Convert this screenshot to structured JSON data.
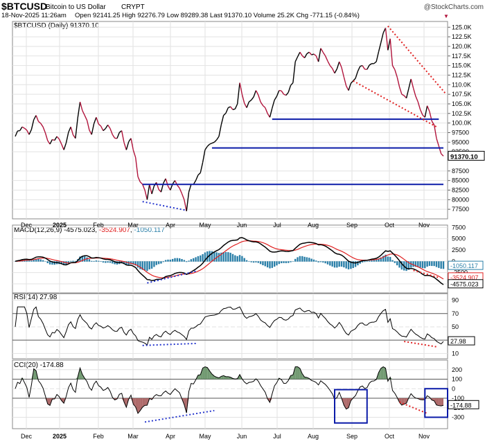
{
  "header": {
    "symbol": "$BTCUSD",
    "name": "Bitcoin to US Dollar",
    "exchange": "CRYPT",
    "copyright": "@StockCharts.com",
    "datetime": "18-Nov-2025 11:26am",
    "ohlc_text": "Open 92141.25  High 92276.79  Low 89289.38  Last 91370.10  Volume 25.2K  Chg -771.15 (-0.84%)",
    "change_arrow": "▼"
  },
  "chart_data": [
    {
      "type": "line",
      "panel": "price",
      "title": "$BTCUSD (Daily) 91370.10",
      "months": [
        "Dec",
        "2025",
        "Feb",
        "Mar",
        "Apr",
        "May",
        "Jun",
        "Jul",
        "Aug",
        "Sep",
        "Oct",
        "Nov"
      ],
      "y_ticks": [
        125000,
        122500,
        120000,
        117500,
        115000,
        112500,
        110000,
        107500,
        105000,
        102500,
        100000,
        97500,
        95000,
        92500,
        87500,
        85000,
        82500,
        80000,
        77500
      ],
      "y_tick_labels": [
        "125.0K",
        "122.5K",
        "120.0K",
        "117.5K",
        "115.0K",
        "112.5K",
        "110.0K",
        "107.5K",
        "105.0K",
        "102.5K",
        "100.0K",
        "97500",
        "95000",
        "92500",
        "87500",
        "85000",
        "82500",
        "80000",
        "77500"
      ],
      "ylim": [
        75000,
        126500
      ],
      "last_label": "91370.10",
      "series": [
        {
          "color_up": "#000000",
          "color_down": "#b0123a",
          "points": [
            [
              0,
              96500
            ],
            [
              3,
              99000
            ],
            [
              6,
              97000
            ],
            [
              9,
              102000
            ],
            [
              12,
              99000
            ],
            [
              15,
              94500
            ],
            [
              18,
              96500
            ],
            [
              21,
              93000
            ],
            [
              24,
              99000
            ],
            [
              26,
              96000
            ],
            [
              28,
              105500
            ],
            [
              30,
              102000
            ],
            [
              33,
              97000
            ],
            [
              35,
              101500
            ],
            [
              38,
              98000
            ],
            [
              40,
              99500
            ],
            [
              42,
              97000
            ],
            [
              44,
              96000
            ],
            [
              46,
              98000
            ],
            [
              48,
              93000
            ],
            [
              50,
              96000
            ],
            [
              52,
              91000
            ],
            [
              53,
              86000
            ],
            [
              55,
              84000
            ],
            [
              57,
              80000
            ],
            [
              58,
              84000
            ],
            [
              59,
              81500
            ],
            [
              61,
              84500
            ],
            [
              63,
              82000
            ],
            [
              65,
              85500
            ],
            [
              67,
              82500
            ],
            [
              69,
              85000
            ],
            [
              71,
              83000
            ],
            [
              73,
              80000
            ],
            [
              74,
              77000
            ],
            [
              75,
              82000
            ],
            [
              76,
              84000
            ],
            [
              78,
              85000
            ],
            [
              80,
              87000
            ],
            [
              82,
              93000
            ],
            [
              84,
              94500
            ],
            [
              86,
              95000
            ],
            [
              88,
              96500
            ],
            [
              90,
              102000
            ],
            [
              92,
              104000
            ],
            [
              94,
              103500
            ],
            [
              96,
              105000
            ],
            [
              97,
              110500
            ],
            [
              98,
              107500
            ],
            [
              100,
              104000
            ],
            [
              102,
              106000
            ],
            [
              104,
              108500
            ],
            [
              106,
              105500
            ],
            [
              108,
              104000
            ],
            [
              109,
              102500
            ],
            [
              110,
              101500
            ],
            [
              112,
              106000
            ],
            [
              114,
              108500
            ],
            [
              116,
              107500
            ],
            [
              118,
              108000
            ],
            [
              120,
              110500
            ],
            [
              121,
              116000
            ],
            [
              123,
              118500
            ],
            [
              125,
              117000
            ],
            [
              127,
              118500
            ],
            [
              129,
              118000
            ],
            [
              131,
              116000
            ],
            [
              132,
              119500
            ],
            [
              134,
              117500
            ],
            [
              136,
              115000
            ],
            [
              138,
              113000
            ],
            [
              140,
              116000
            ],
            [
              142,
              112000
            ],
            [
              144,
              108500
            ],
            [
              146,
              111000
            ],
            [
              148,
              113500
            ],
            [
              150,
              115000
            ],
            [
              152,
              114000
            ],
            [
              154,
              115500
            ],
            [
              156,
              116000
            ],
            [
              158,
              121000
            ],
            [
              159,
              123500
            ],
            [
              160,
              124800
            ],
            [
              161,
              119000
            ],
            [
              162,
              122000
            ],
            [
              163,
              115000
            ],
            [
              165,
              112000
            ],
            [
              167,
              107500
            ],
            [
              169,
              106500
            ],
            [
              171,
              111500
            ],
            [
              173,
              107000
            ],
            [
              175,
              103500
            ],
            [
              177,
              101500
            ],
            [
              178,
              104500
            ],
            [
              179,
              103000
            ],
            [
              180,
              100500
            ],
            [
              181,
              99500
            ],
            [
              182,
              96000
            ],
            [
              183,
              94000
            ],
            [
              184,
              92000
            ],
            [
              185,
              91370
            ]
          ]
        }
      ],
      "support_lines": [
        {
          "y": 101000,
          "x0": 111,
          "x1": 183
        },
        {
          "y": 93500,
          "x0": 85,
          "x1": 185
        },
        {
          "y": 84000,
          "x0": 55,
          "x1": 185
        }
      ]
    },
    {
      "type": "line",
      "panel": "macd",
      "title": "MACD(12,26,9) -4575.023, -3524.907, -1050.117",
      "title_parts": {
        "label": "MACD(12,26,9)",
        "macd": "-4575.023",
        "signal": "-3524.907",
        "hist": "-1050.117"
      },
      "y_ticks": [
        7500,
        5000,
        2500,
        0,
        -2500,
        -5000
      ],
      "y_tick_labels": [
        "7500",
        "5000",
        "2500",
        "0",
        "-2500",
        "-5000"
      ],
      "ylim": [
        -7000,
        8000
      ],
      "value_labels": [
        "-1050.117",
        "-3524.907",
        "-4575.023"
      ]
    },
    {
      "type": "line",
      "panel": "rsi",
      "title": "RSI(14) 27.98",
      "y_ticks": [
        90,
        70,
        50,
        30,
        10
      ],
      "ylim": [
        2,
        100
      ],
      "value_label": "27.98"
    },
    {
      "type": "line",
      "panel": "cci",
      "title": "CCI(20) -174.88",
      "y_ticks": [
        200,
        100,
        0,
        -100,
        -200,
        -300
      ],
      "ylim": [
        -420,
        300
      ],
      "value_label": "-174.88"
    }
  ],
  "colors": {
    "up": "#000000",
    "down": "#b0123a",
    "support": "#0a1aa8",
    "trend_red": "#e02020",
    "trend_blue": "#2233cc",
    "macd_hist": "#2a7fa8",
    "signal": "#e02020",
    "cci_pos": "#5a8a5a",
    "cci_neg": "#a05050"
  }
}
